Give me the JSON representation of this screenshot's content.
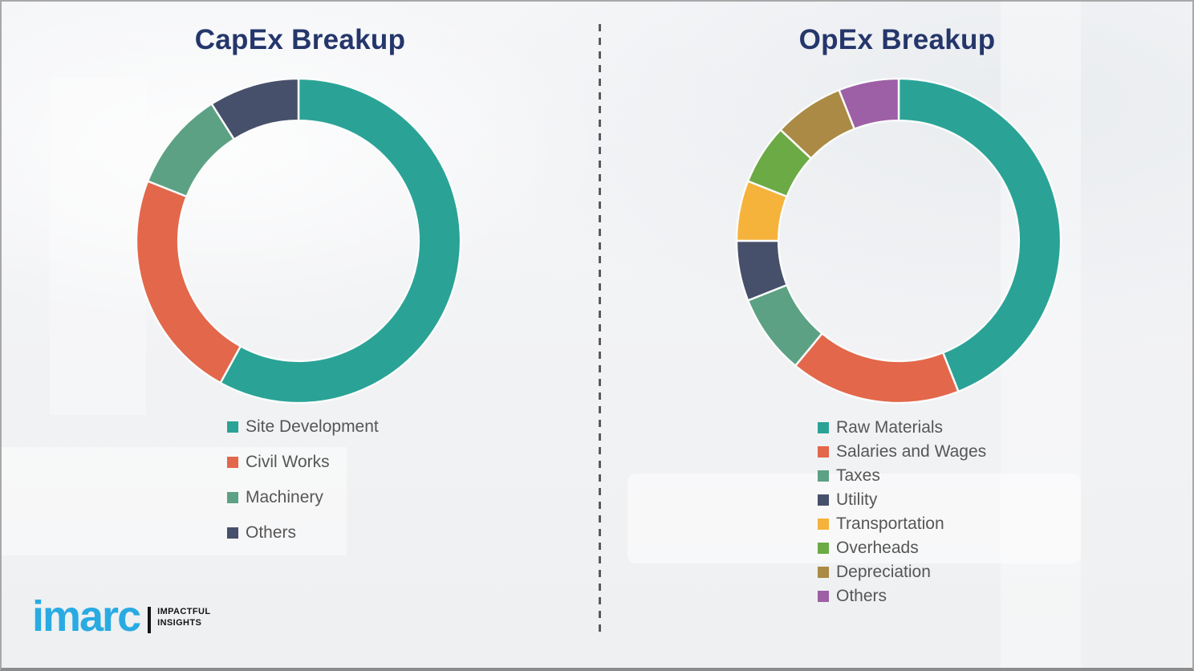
{
  "chart_data": [
    {
      "type": "pie",
      "donut": true,
      "title": "CapEx Breakup",
      "labels": [
        "Site Development",
        "Civil Works",
        "Machinery",
        "Others"
      ],
      "values": [
        58,
        23,
        10,
        9
      ],
      "colors": [
        "#2aa396",
        "#e3674b",
        "#5ca183",
        "#47506a"
      ],
      "legend_position": "below-left",
      "start_angle": "top",
      "direction": "clockwise"
    },
    {
      "type": "pie",
      "donut": true,
      "title": "OpEx Breakup",
      "labels": [
        "Raw Materials",
        "Salaries and Wages",
        "Taxes",
        "Utility",
        "Transportation",
        "Overheads",
        "Depreciation",
        "Others"
      ],
      "values": [
        44,
        17,
        8,
        6,
        6,
        6,
        7,
        6
      ],
      "colors": [
        "#2aa396",
        "#e3674b",
        "#5ca183",
        "#47506a",
        "#f5b33c",
        "#6caa45",
        "#aa8a44",
        "#9d5fa5"
      ],
      "legend_position": "below-left",
      "start_angle": "top",
      "direction": "clockwise"
    }
  ],
  "logo": {
    "brand": "imarc",
    "tagline_line1": "IMPACTFUL",
    "tagline_line2": "INSIGHTS",
    "brand_color": "#29abe2"
  },
  "style": {
    "title_color": "#24366b",
    "legend_text_color": "#565656",
    "background_color": "#f3f4f6",
    "divider_color": "#5a5a5a"
  }
}
